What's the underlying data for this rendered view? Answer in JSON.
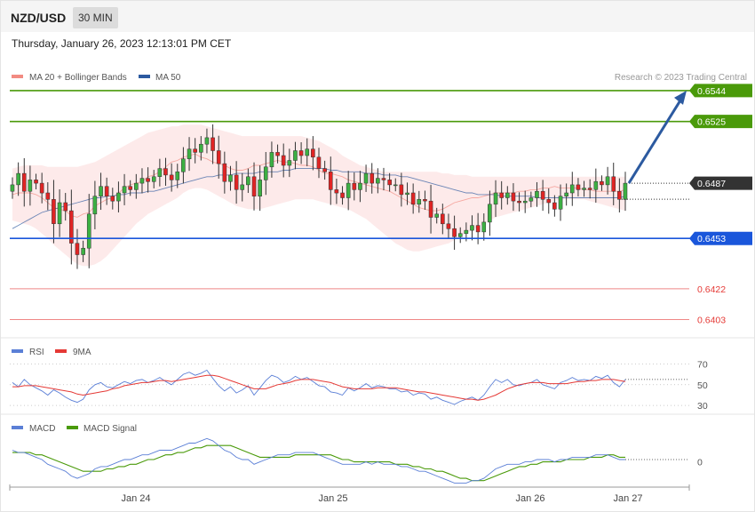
{
  "header": {
    "pair": "NZD/USD",
    "timeframe": "30 MIN",
    "datetime": "Thursday, January 26, 2023 12:13:01 PM CET"
  },
  "legend": {
    "ma20": "MA 20 + Bollinger Bands",
    "ma50": "MA 50",
    "copyright": "Research © 2023 Trading Central",
    "ma20_color": "#f28b82",
    "ma50_color": "#2c5aa0"
  },
  "levels": [
    {
      "name": "resistance-2",
      "value": 0.6544,
      "label": "0.6544",
      "color": "#4a9a0a",
      "style": "tag"
    },
    {
      "name": "resistance-1",
      "value": 0.6525,
      "label": "0.6525",
      "color": "#4a9a0a",
      "style": "tag"
    },
    {
      "name": "last-price",
      "value": 0.6487,
      "label": "0.6487",
      "color": "#333333",
      "style": "tag"
    },
    {
      "name": "pivot",
      "value": 0.6453,
      "label": "0.6453",
      "color": "#1a56db",
      "style": "tag"
    },
    {
      "name": "support-1",
      "value": 0.6422,
      "label": "0.6422",
      "color": "#e53935",
      "style": "text"
    },
    {
      "name": "support-2",
      "value": 0.6403,
      "label": "0.6403",
      "color": "#e53935",
      "style": "text"
    }
  ],
  "rsi_panel": {
    "label": "RSI",
    "ma_label": "9MA",
    "rsi_color": "#5b7fd6",
    "ma_color": "#e53935",
    "levels": [
      "70",
      "50",
      "30"
    ]
  },
  "macd_panel": {
    "label": "MACD",
    "signal_label": "MACD Signal",
    "macd_color": "#5b7fd6",
    "signal_color": "#4a9a0a",
    "zero_label": "0"
  },
  "x_axis": {
    "labels": [
      "Jan 24",
      "Jan 25",
      "Jan 26",
      "Jan 27"
    ]
  },
  "chart_data": {
    "type": "candlestick",
    "price_range": [
      0.6394,
      0.6556
    ],
    "closes": [
      0.6486,
      0.6493,
      0.6482,
      0.6489,
      0.6487,
      0.6481,
      0.6477,
      0.6462,
      0.6475,
      0.647,
      0.645,
      0.6443,
      0.6447,
      0.6468,
      0.6479,
      0.6485,
      0.6479,
      0.6476,
      0.6481,
      0.6485,
      0.6483,
      0.6487,
      0.649,
      0.6488,
      0.6491,
      0.6496,
      0.6492,
      0.6489,
      0.6494,
      0.6502,
      0.6508,
      0.6506,
      0.6511,
      0.6515,
      0.6507,
      0.6499,
      0.6488,
      0.6492,
      0.6483,
      0.6486,
      0.6491,
      0.6479,
      0.6489,
      0.6497,
      0.6506,
      0.6504,
      0.6498,
      0.6501,
      0.6507,
      0.6504,
      0.6508,
      0.6503,
      0.6496,
      0.6494,
      0.6483,
      0.6481,
      0.6478,
      0.6487,
      0.6483,
      0.6487,
      0.6493,
      0.6487,
      0.649,
      0.6489,
      0.6486,
      0.6486,
      0.648,
      0.6481,
      0.6474,
      0.6477,
      0.6476,
      0.6466,
      0.6468,
      0.6462,
      0.6459,
      0.6454,
      0.6456,
      0.6458,
      0.6461,
      0.6457,
      0.6463,
      0.6474,
      0.6481,
      0.6478,
      0.6481,
      0.6476,
      0.6475,
      0.6476,
      0.6478,
      0.6482,
      0.6477,
      0.6475,
      0.6471,
      0.6479,
      0.6481,
      0.6486,
      0.6483,
      0.6484,
      0.6483,
      0.6488,
      0.6486,
      0.6491,
      0.6482,
      0.6477,
      0.6487
    ],
    "ma20": [
      0.648,
      0.6481,
      0.6481,
      0.6481,
      0.648,
      0.6478,
      0.6475,
      0.6472,
      0.6471,
      0.647,
      0.6467,
      0.6466,
      0.6468,
      0.6469,
      0.6473,
      0.6475,
      0.6477,
      0.6478,
      0.6481,
      0.6484,
      0.6486,
      0.6487,
      0.6488,
      0.6491,
      0.6492,
      0.6494,
      0.6497,
      0.65,
      0.6501,
      0.6503,
      0.6504,
      0.6505,
      0.6503,
      0.6502,
      0.65,
      0.6499,
      0.6498,
      0.6496,
      0.6495,
      0.6495,
      0.6496,
      0.6498,
      0.6498,
      0.6499,
      0.65,
      0.6501,
      0.65,
      0.65,
      0.6499,
      0.6498,
      0.6498,
      0.6497,
      0.6495,
      0.6493,
      0.6493,
      0.6492,
      0.6491,
      0.6489,
      0.6488,
      0.6487,
      0.6486,
      0.6485,
      0.6484,
      0.6483,
      0.6482,
      0.648,
      0.6478,
      0.6476,
      0.6474,
      0.6472,
      0.6471,
      0.647,
      0.647,
      0.6471,
      0.6473,
      0.6475,
      0.6476,
      0.6477,
      0.6478,
      0.6478,
      0.6479,
      0.648,
      0.6481,
      0.6481,
      0.6481,
      0.6481,
      0.6482,
      0.6482,
      0.6483,
      0.6483,
      0.6484,
      0.6484,
      0.6485,
      0.6484,
      0.6484,
      0.6484,
      0.6484,
      0.6483,
      0.6483,
      0.6482,
      0.6482,
      0.6482,
      0.6482,
      0.6482,
      0.6483
    ],
    "ma50": [
      0.6459,
      0.6461,
      0.6463,
      0.6465,
      0.6467,
      0.6469,
      0.647,
      0.6471,
      0.6472,
      0.6473,
      0.6474,
      0.6475,
      0.6476,
      0.6477,
      0.6478,
      0.6478,
      0.6479,
      0.6479,
      0.648,
      0.648,
      0.6481,
      0.6481,
      0.6481,
      0.6482,
      0.6482,
      0.6483,
      0.6484,
      0.6485,
      0.6486,
      0.6487,
      0.6488,
      0.6489,
      0.649,
      0.6491,
      0.6491,
      0.6492,
      0.6492,
      0.6492,
      0.6493,
      0.6493,
      0.6493,
      0.6493,
      0.6494,
      0.6494,
      0.6494,
      0.6494,
      0.6495,
      0.6495,
      0.6496,
      0.6496,
      0.6496,
      0.6496,
      0.6496,
      0.6496,
      0.6495,
      0.6495,
      0.6494,
      0.6494,
      0.6494,
      0.6494,
      0.6493,
      0.6493,
      0.6493,
      0.6492,
      0.6492,
      0.6492,
      0.6491,
      0.6491,
      0.649,
      0.6489,
      0.6488,
      0.6487,
      0.6486,
      0.6485,
      0.6484,
      0.6483,
      0.6482,
      0.6481,
      0.6481,
      0.648,
      0.648,
      0.648,
      0.648,
      0.6479,
      0.6479,
      0.6479,
      0.6479,
      0.6479,
      0.6479,
      0.6478,
      0.6478,
      0.6478,
      0.6478,
      0.6478,
      0.6478,
      0.6478,
      0.6478,
      0.6478,
      0.6478,
      0.6478,
      0.6478,
      0.6478,
      0.6478,
      0.6478,
      0.6479
    ],
    "bb_upper": [
      0.6496,
      0.6497,
      0.6498,
      0.6498,
      0.6498,
      0.6498,
      0.6497,
      0.6497,
      0.6497,
      0.6497,
      0.6497,
      0.6497,
      0.6498,
      0.6499,
      0.65,
      0.6502,
      0.6504,
      0.6506,
      0.6508,
      0.651,
      0.6512,
      0.6514,
      0.6516,
      0.6518,
      0.6519,
      0.652,
      0.6521,
      0.6522,
      0.6522,
      0.6523,
      0.6523,
      0.6523,
      0.6523,
      0.6522,
      0.6521,
      0.652,
      0.6519,
      0.6518,
      0.6517,
      0.6516,
      0.6516,
      0.6516,
      0.6516,
      0.6516,
      0.6516,
      0.6516,
      0.6516,
      0.6516,
      0.6516,
      0.6516,
      0.6515,
      0.6514,
      0.6513,
      0.6511,
      0.6509,
      0.6507,
      0.6504,
      0.6502,
      0.65,
      0.6498,
      0.6497,
      0.6496,
      0.6495,
      0.6494,
      0.6494,
      0.6494,
      0.6494,
      0.6494,
      0.6494,
      0.6494,
      0.6494,
      0.6494,
      0.6494,
      0.6493,
      0.6493,
      0.6492,
      0.6492,
      0.6492,
      0.6491,
      0.6491,
      0.6491,
      0.6491,
      0.6491,
      0.6491,
      0.6491,
      0.6491,
      0.6491,
      0.6491,
      0.6491,
      0.6491,
      0.6491,
      0.6491,
      0.6491,
      0.6491,
      0.6491,
      0.6491,
      0.6491,
      0.6491,
      0.6491,
      0.6491,
      0.6491,
      0.6491,
      0.6491,
      0.6491,
      0.6491
    ],
    "bb_lower": [
      0.6464,
      0.6463,
      0.6462,
      0.6461,
      0.6459,
      0.6456,
      0.6453,
      0.6449,
      0.6446,
      0.6443,
      0.644,
      0.6437,
      0.6436,
      0.6436,
      0.6437,
      0.6439,
      0.6442,
      0.6446,
      0.645,
      0.6454,
      0.6458,
      0.6462,
      0.6465,
      0.6468,
      0.647,
      0.6472,
      0.6474,
      0.6476,
      0.6478,
      0.6481,
      0.6483,
      0.6484,
      0.6484,
      0.6483,
      0.6481,
      0.6479,
      0.6477,
      0.6475,
      0.6473,
      0.6472,
      0.6471,
      0.6471,
      0.6471,
      0.6472,
      0.6473,
      0.6474,
      0.6475,
      0.6476,
      0.6477,
      0.6477,
      0.6477,
      0.6477,
      0.6476,
      0.6475,
      0.6474,
      0.6473,
      0.6472,
      0.6471,
      0.6469,
      0.6467,
      0.6465,
      0.6462,
      0.6459,
      0.6456,
      0.6453,
      0.645,
      0.6448,
      0.6446,
      0.6445,
      0.6445,
      0.6446,
      0.6447,
      0.6448,
      0.6449,
      0.645,
      0.6452,
      0.6454,
      0.6456,
      0.6458,
      0.646,
      0.6462,
      0.6464,
      0.6466,
      0.6467,
      0.6468,
      0.6469,
      0.647,
      0.6471,
      0.6472,
      0.6473,
      0.6474,
      0.6475,
      0.6476,
      0.6477,
      0.6477,
      0.6477,
      0.6477,
      0.6477,
      0.6476,
      0.6475,
      0.6474,
      0.6473,
      0.6472,
      0.6471,
      0.647
    ],
    "projection_target": 0.6544,
    "rsi_range": [
      25,
      78
    ],
    "rsi": [
      52,
      48,
      55,
      50,
      47,
      44,
      40,
      45,
      42,
      38,
      35,
      33,
      36,
      45,
      50,
      52,
      48,
      47,
      50,
      53,
      51,
      54,
      55,
      52,
      54,
      57,
      53,
      50,
      55,
      60,
      62,
      59,
      61,
      64,
      56,
      49,
      44,
      48,
      42,
      45,
      49,
      40,
      47,
      54,
      59,
      57,
      52,
      54,
      58,
      55,
      57,
      53,
      49,
      48,
      43,
      42,
      40,
      47,
      44,
      47,
      51,
      47,
      49,
      48,
      46,
      46,
      43,
      44,
      40,
      42,
      41,
      36,
      38,
      35,
      33,
      31,
      34,
      36,
      38,
      35,
      40,
      48,
      55,
      52,
      55,
      50,
      49,
      51,
      52,
      55,
      50,
      48,
      46,
      52,
      54,
      57,
      54,
      55,
      54,
      58,
      56,
      59,
      52,
      48,
      55
    ],
    "rsi_ma": [
      48,
      48,
      49,
      49,
      49,
      48,
      47,
      46,
      45,
      44,
      43,
      41,
      40,
      41,
      42,
      43,
      44,
      46,
      47,
      49,
      50,
      51,
      52,
      52,
      53,
      54,
      54,
      53,
      54,
      55,
      56,
      57,
      58,
      59,
      59,
      58,
      56,
      54,
      52,
      50,
      48,
      46,
      46,
      46,
      48,
      50,
      51,
      52,
      54,
      55,
      55,
      55,
      54,
      53,
      52,
      50,
      48,
      47,
      46,
      46,
      46,
      46,
      47,
      47,
      47,
      47,
      46,
      45,
      44,
      43,
      43,
      42,
      41,
      40,
      39,
      38,
      37,
      36,
      36,
      35,
      36,
      38,
      40,
      43,
      46,
      48,
      50,
      51,
      52,
      52,
      52,
      51,
      51,
      51,
      51,
      52,
      53,
      53,
      54,
      54,
      55,
      55,
      55,
      54,
      53
    ],
    "macd_range": [
      -0.001,
      0.0012
    ],
    "macd": [
      0.0005,
      0.0004,
      0.0004,
      0.0003,
      0.0002,
      0.0001,
      -0.0001,
      -0.0002,
      -0.0003,
      -0.0004,
      -0.0006,
      -0.0007,
      -0.0006,
      -0.0005,
      -0.0003,
      -0.0002,
      -0.0002,
      -0.0001,
      0.0,
      0.0001,
      0.0001,
      0.0002,
      0.0003,
      0.0003,
      0.0004,
      0.0005,
      0.0005,
      0.0005,
      0.0006,
      0.0007,
      0.0008,
      0.0008,
      0.0009,
      0.001,
      0.0009,
      0.0007,
      0.0005,
      0.0004,
      0.0002,
      0.0001,
      0.0001,
      -0.0001,
      0.0,
      0.0001,
      0.0002,
      0.0003,
      0.0003,
      0.0003,
      0.0004,
      0.0004,
      0.0004,
      0.0004,
      0.0003,
      0.0002,
      0.0001,
      0.0,
      -0.0001,
      -0.0001,
      -0.0001,
      -0.0001,
      0.0,
      -0.0001,
      0.0,
      -0.0001,
      -0.0001,
      -0.0001,
      -0.0002,
      -0.0002,
      -0.0003,
      -0.0004,
      -0.0004,
      -0.0005,
      -0.0006,
      -0.0007,
      -0.0008,
      -0.0009,
      -0.0009,
      -0.0009,
      -0.0008,
      -0.0008,
      -0.0007,
      -0.0005,
      -0.0003,
      -0.0002,
      -0.0001,
      -0.0001,
      -0.0001,
      0.0,
      0.0,
      0.0001,
      0.0001,
      0.0001,
      0.0,
      0.0001,
      0.0001,
      0.0002,
      0.0002,
      0.0002,
      0.0002,
      0.0003,
      0.0003,
      0.0003,
      0.0002,
      0.0001,
      0.0001
    ],
    "macd_signal": [
      0.0004,
      0.0004,
      0.0004,
      0.0004,
      0.0003,
      0.0003,
      0.0002,
      0.0001,
      0.0,
      -0.0001,
      -0.0002,
      -0.0003,
      -0.0004,
      -0.0004,
      -0.0004,
      -0.0004,
      -0.0003,
      -0.0003,
      -0.0002,
      -0.0002,
      -0.0001,
      -0.0001,
      0.0,
      0.0001,
      0.0001,
      0.0002,
      0.0003,
      0.0003,
      0.0004,
      0.0004,
      0.0005,
      0.0006,
      0.0006,
      0.0007,
      0.0007,
      0.0007,
      0.0007,
      0.0007,
      0.0006,
      0.0005,
      0.0004,
      0.0003,
      0.0002,
      0.0002,
      0.0002,
      0.0002,
      0.0002,
      0.0002,
      0.0003,
      0.0003,
      0.0003,
      0.0003,
      0.0003,
      0.0003,
      0.0003,
      0.0002,
      0.0001,
      0.0001,
      0.0,
      0.0,
      0.0,
      0.0,
      0.0,
      0.0,
      0.0,
      -0.0001,
      -0.0001,
      -0.0001,
      -0.0002,
      -0.0002,
      -0.0003,
      -0.0003,
      -0.0004,
      -0.0004,
      -0.0005,
      -0.0006,
      -0.0007,
      -0.0007,
      -0.0008,
      -0.0008,
      -0.0008,
      -0.0007,
      -0.0006,
      -0.0005,
      -0.0004,
      -0.0003,
      -0.0002,
      -0.0002,
      -0.0001,
      -0.0001,
      0.0,
      0.0,
      0.0,
      0.0,
      0.0001,
      0.0001,
      0.0001,
      0.0001,
      0.0002,
      0.0002,
      0.0002,
      0.0003,
      0.0003,
      0.0002,
      0.0002
    ]
  }
}
